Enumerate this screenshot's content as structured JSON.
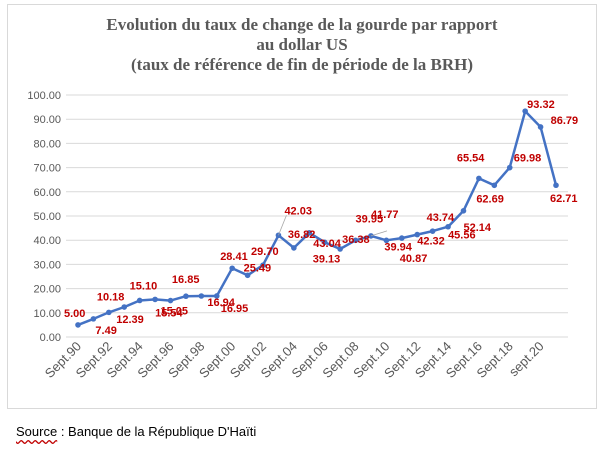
{
  "chart_data": {
    "type": "line",
    "title": [
      "Evolution du taux de change de la gourde par rapport",
      "au dollar US",
      "(taux de référence de fin de période de la BRH)"
    ],
    "ylim": [
      0,
      100
    ],
    "yticks": [
      "0.00",
      "10.00",
      "20.00",
      "30.00",
      "40.00",
      "50.00",
      "60.00",
      "70.00",
      "80.00",
      "90.00",
      "100.00"
    ],
    "xtick_labels": [
      "Sept.90",
      "Sept.92",
      "Sept.94",
      "Sept.96",
      "Sept.98",
      "Sept.00",
      "Sept.02",
      "Sept.04",
      "Sept.06",
      "Sept.08",
      "Sept.10",
      "Sept.12",
      "Sept.14",
      "Sept.16",
      "Sept.18",
      "sept.20"
    ],
    "grid": true,
    "line_color": "#4472c4",
    "label_color": "#c00000",
    "series": [
      {
        "x": [
          1990,
          1991,
          1992,
          1993,
          1994,
          1995,
          1996,
          1997,
          1998,
          1999,
          2000,
          2001,
          2002,
          2003,
          2004,
          2005,
          2006,
          2007,
          2008,
          2009,
          2010,
          2011,
          2012,
          2013,
          2014,
          2015,
          2016,
          2017,
          2018,
          2019,
          2020,
          2021
        ],
        "values": [
          5.0,
          7.49,
          10.18,
          12.39,
          15.1,
          15.54,
          15.05,
          16.85,
          16.94,
          16.95,
          28.41,
          25.49,
          29.7,
          42.03,
          36.82,
          43.04,
          39.13,
          36.38,
          39.95,
          41.77,
          39.94,
          40.87,
          42.32,
          43.74,
          45.56,
          52.14,
          65.54,
          62.69,
          69.98,
          93.32,
          86.79,
          62.71
        ],
        "labels": [
          "5.00",
          "7.49",
          "10.18",
          "12.39",
          "15.10",
          "15.54",
          "15.05",
          "16.85",
          "16.94",
          "16.95",
          "28.41",
          "25.49",
          "29.70",
          "42.03",
          "36.82",
          "43.04",
          "39.13",
          "36.38",
          "39.95",
          "41.77",
          "39.94",
          "40.87",
          "42.32",
          "43.74",
          "45.56",
          "52.14",
          "65.54",
          "62.69",
          "69.98",
          "93.32",
          "86.79",
          "62.71"
        ]
      }
    ]
  },
  "source": {
    "label": "Source",
    "text": " : Banque de la République D'Haïti"
  }
}
